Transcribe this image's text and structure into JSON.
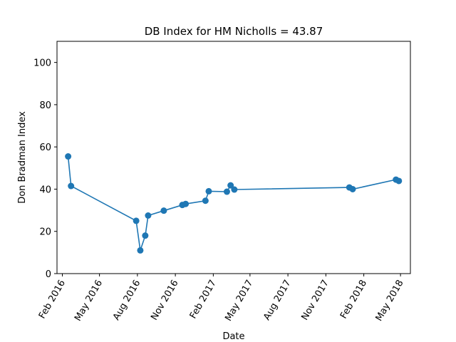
{
  "chart_data": {
    "type": "line",
    "title": "DB Index for HM Nicholls = 43.87",
    "xlabel": "Date",
    "ylabel": "Don Bradman Index",
    "ylim": [
      0,
      110
    ],
    "xlim": [
      "2016-01-19",
      "2018-05-25"
    ],
    "grid": false,
    "marker": "circle",
    "series_color": "#1f77b4",
    "y_ticks": [
      0,
      20,
      40,
      60,
      80,
      100
    ],
    "x_ticks": [
      {
        "date": "2016-02-01",
        "label": "Feb 2016"
      },
      {
        "date": "2016-05-01",
        "label": "May 2016"
      },
      {
        "date": "2016-08-01",
        "label": "Aug 2016"
      },
      {
        "date": "2016-11-01",
        "label": "Nov 2016"
      },
      {
        "date": "2017-02-01",
        "label": "Feb 2017"
      },
      {
        "date": "2017-05-01",
        "label": "May 2017"
      },
      {
        "date": "2017-08-01",
        "label": "Aug 2017"
      },
      {
        "date": "2017-11-01",
        "label": "Nov 2017"
      },
      {
        "date": "2018-02-01",
        "label": "Feb 2018"
      },
      {
        "date": "2018-05-01",
        "label": "May 2018"
      }
    ],
    "points": [
      {
        "x": "2016-02-15",
        "y": 55.5
      },
      {
        "x": "2016-02-22",
        "y": 41.5
      },
      {
        "x": "2016-07-29",
        "y": 25.0
      },
      {
        "x": "2016-08-08",
        "y": 11.0
      },
      {
        "x": "2016-08-20",
        "y": 18.0
      },
      {
        "x": "2016-08-27",
        "y": 27.5
      },
      {
        "x": "2016-10-04",
        "y": 29.8
      },
      {
        "x": "2016-11-18",
        "y": 32.5
      },
      {
        "x": "2016-11-26",
        "y": 33.0
      },
      {
        "x": "2017-01-13",
        "y": 34.5
      },
      {
        "x": "2017-01-21",
        "y": 39.0
      },
      {
        "x": "2017-03-06",
        "y": 38.8
      },
      {
        "x": "2017-03-15",
        "y": 41.8
      },
      {
        "x": "2017-03-24",
        "y": 39.8
      },
      {
        "x": "2017-12-28",
        "y": 40.8
      },
      {
        "x": "2018-01-05",
        "y": 40.0
      },
      {
        "x": "2018-04-20",
        "y": 44.5
      },
      {
        "x": "2018-04-27",
        "y": 43.87
      }
    ]
  }
}
